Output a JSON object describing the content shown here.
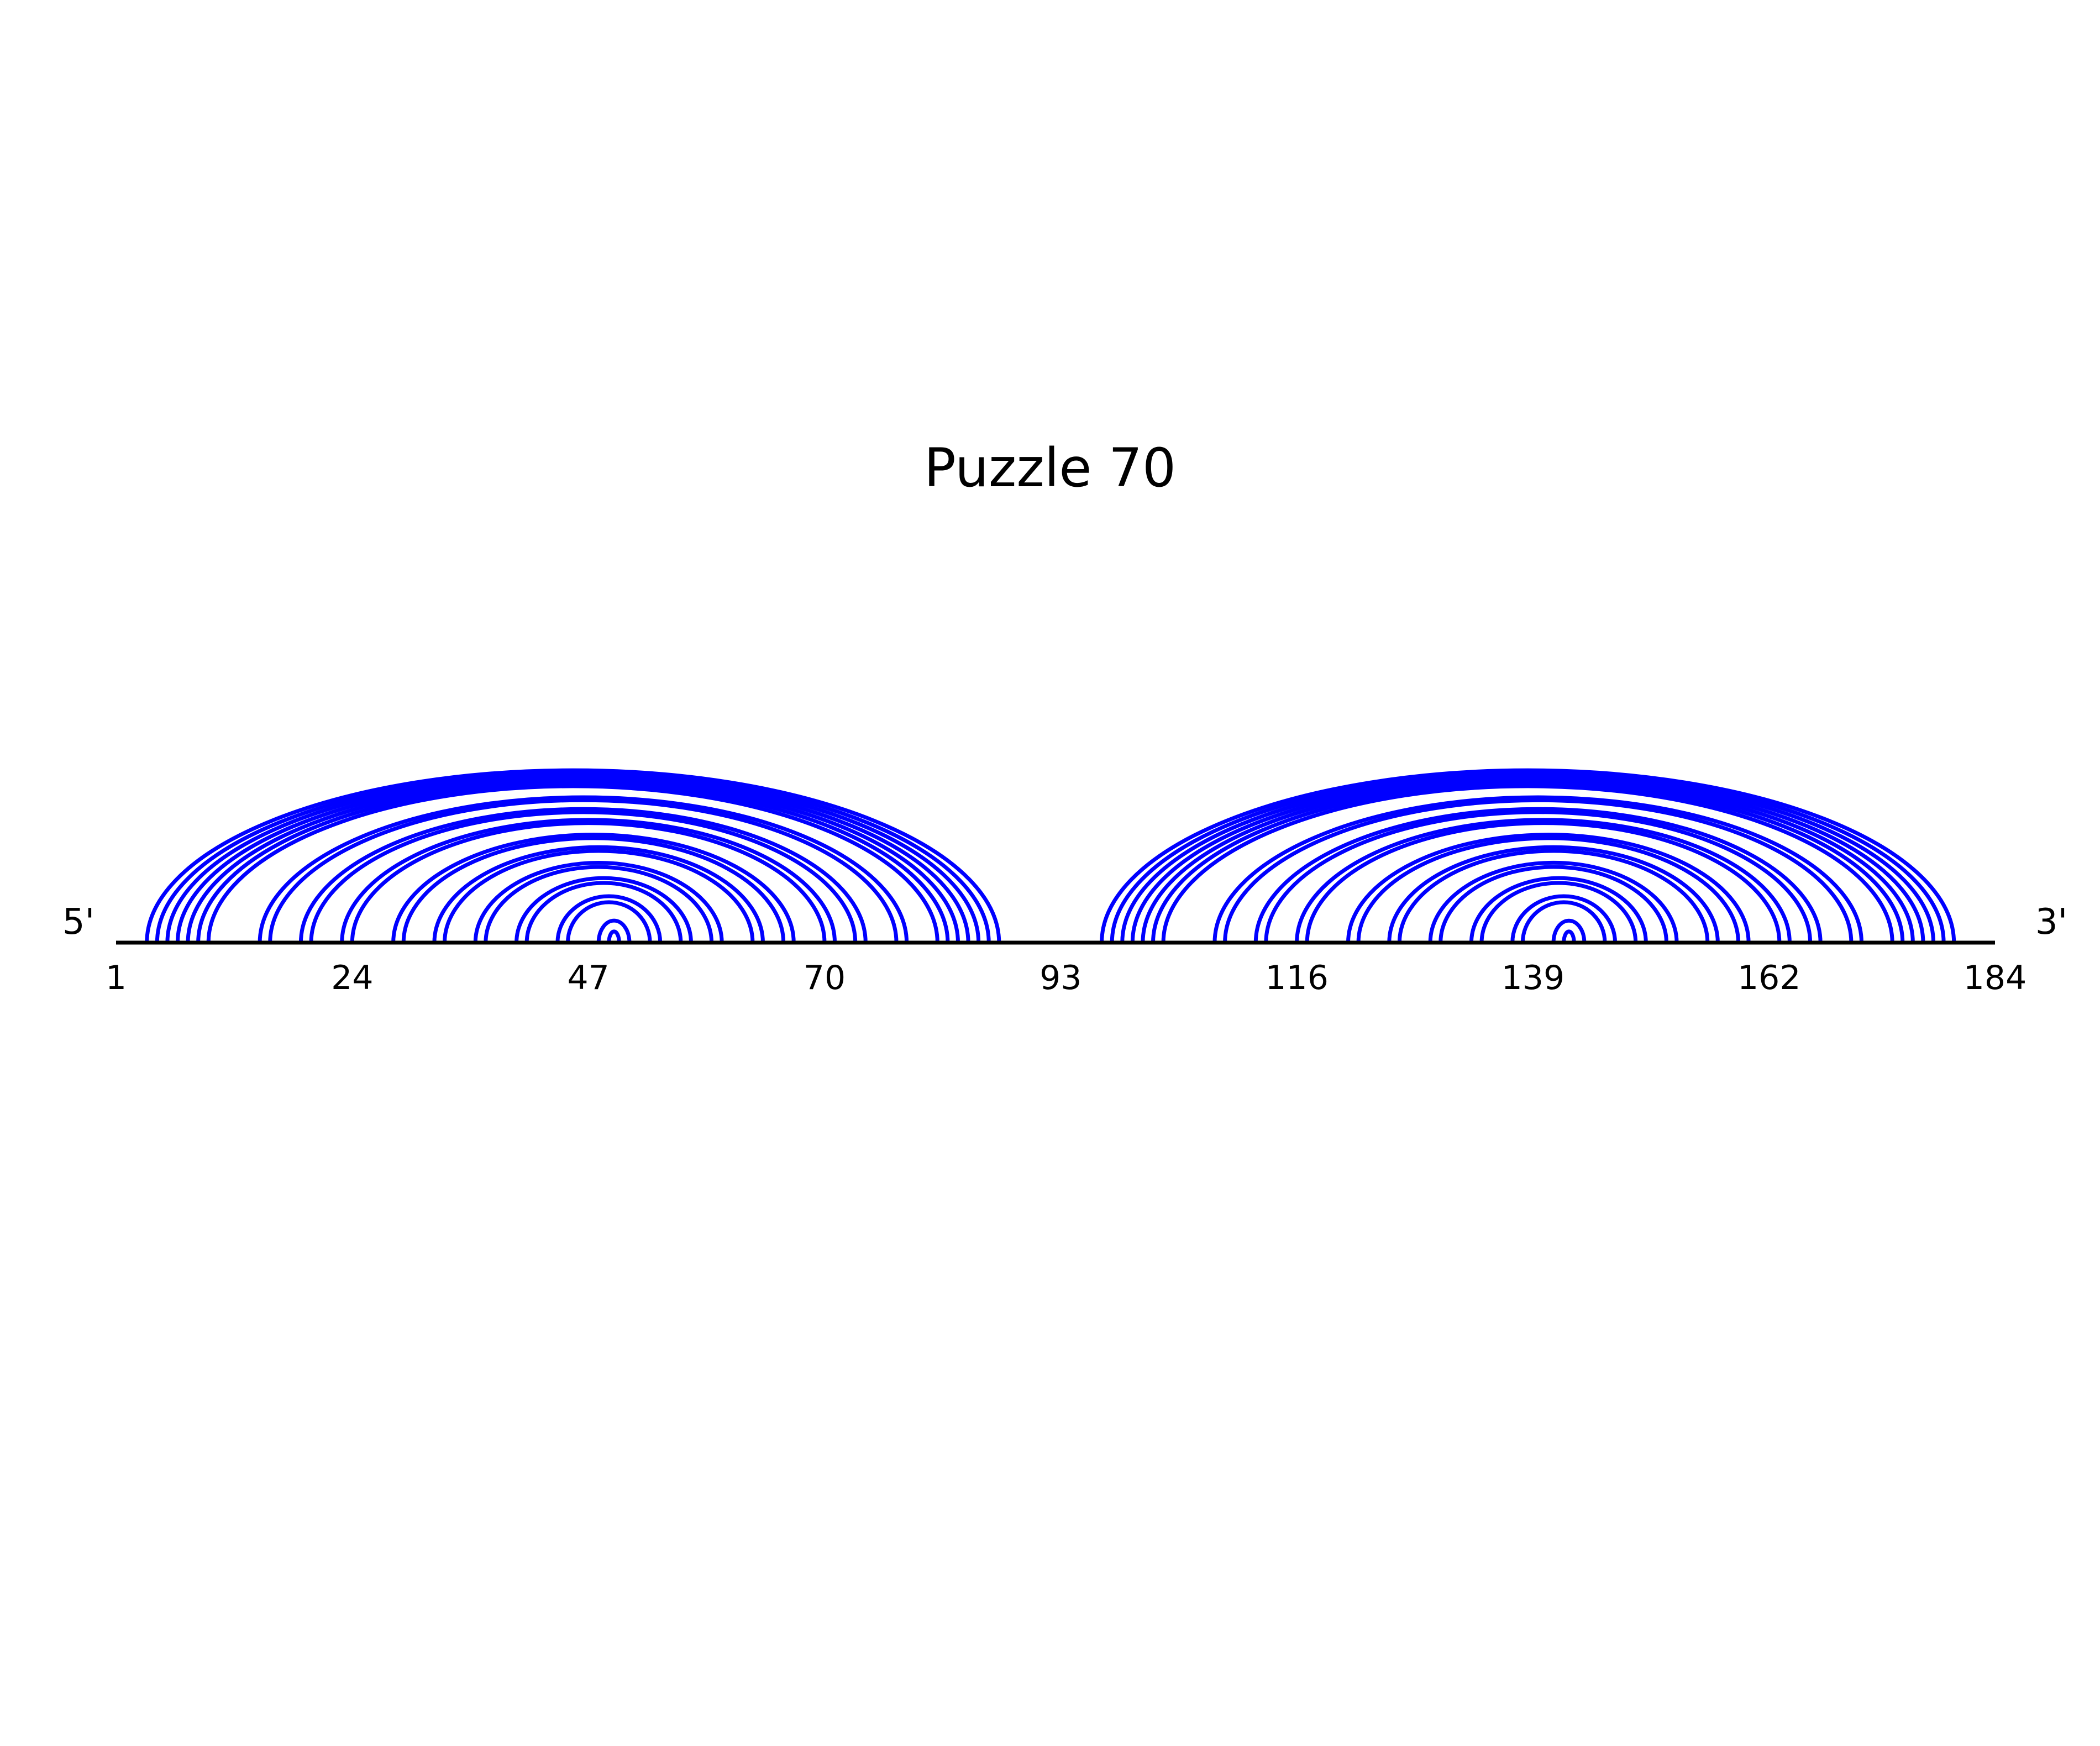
{
  "title": "Puzzle 70",
  "five_prime_label": "5'",
  "three_prime_label": "3'",
  "colors": {
    "arc": "#0000ff",
    "backbone": "#000000",
    "background": "#ffffff"
  },
  "chart_data": {
    "type": "arc-diagram",
    "sequence_length": 184,
    "tick_labels": [
      "1",
      "24",
      "47",
      "70",
      "93",
      "116",
      "139",
      "162",
      "184"
    ],
    "pairs": [
      [
        4,
        87
      ],
      [
        5,
        86
      ],
      [
        6,
        85
      ],
      [
        7,
        84
      ],
      [
        8,
        83
      ],
      [
        9,
        82
      ],
      [
        10,
        81
      ],
      [
        15,
        78
      ],
      [
        16,
        77
      ],
      [
        19,
        74
      ],
      [
        20,
        73
      ],
      [
        23,
        71
      ],
      [
        24,
        70
      ],
      [
        28,
        67
      ],
      [
        29,
        66
      ],
      [
        32,
        64
      ],
      [
        33,
        63
      ],
      [
        36,
        60
      ],
      [
        37,
        59
      ],
      [
        40,
        57
      ],
      [
        41,
        56
      ],
      [
        44,
        54
      ],
      [
        45,
        53
      ],
      [
        48,
        51
      ],
      [
        49,
        50
      ],
      [
        97,
        180
      ],
      [
        98,
        179
      ],
      [
        99,
        178
      ],
      [
        100,
        177
      ],
      [
        101,
        176
      ],
      [
        102,
        175
      ],
      [
        103,
        174
      ],
      [
        108,
        171
      ],
      [
        109,
        170
      ],
      [
        112,
        167
      ],
      [
        113,
        166
      ],
      [
        116,
        164
      ],
      [
        117,
        163
      ],
      [
        121,
        160
      ],
      [
        122,
        159
      ],
      [
        125,
        157
      ],
      [
        126,
        156
      ],
      [
        129,
        153
      ],
      [
        130,
        152
      ],
      [
        133,
        150
      ],
      [
        134,
        149
      ],
      [
        137,
        147
      ],
      [
        138,
        146
      ],
      [
        141,
        144
      ],
      [
        142,
        143
      ]
    ]
  }
}
